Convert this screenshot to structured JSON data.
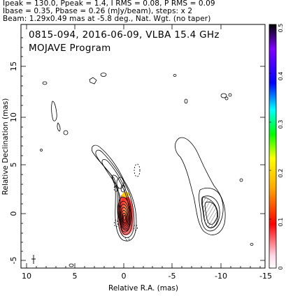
{
  "header": {
    "line1": "Ipeak = 130.0, Ppeak = 1.4, I RMS = 0.08, P RMS = 0.09",
    "line2": "Ibase = 0.35, Pbase = 0.26 (mJy/beam), steps: x 2",
    "line3": "Beam: 1.29x0.49 mas at -5.8 deg., Nat. Wgt. (no taper)"
  },
  "annotation": {
    "source_line": "0815-094, 2016-06-09, VLBA 15.4 GHz",
    "program": "MOJAVE Program"
  },
  "axes": {
    "xlabel": "Relative R.A. (mas)",
    "ylabel": "Relative Declination (mas)",
    "x_ticks": [
      "10",
      "5",
      "0",
      "-5",
      "-10",
      "-15"
    ],
    "y_ticks": [
      "15",
      "10",
      "5",
      "0",
      "-5"
    ]
  },
  "colorbar": {
    "ticks": [
      "0",
      "0.1",
      "0.2",
      "0.3",
      "0.4",
      "0.5"
    ],
    "colors": [
      "#ffffff",
      "#ff0000",
      "#ffff00",
      "#00ff00",
      "#00ffff",
      "#0000ff",
      "#8000ff",
      "#000000"
    ]
  },
  "chart_data": {
    "type": "contour",
    "xlim": [
      10.5,
      -15
    ],
    "ylim": [
      -6,
      19.5
    ],
    "xlabel": "Relative R.A. (mas)",
    "ylabel": "Relative Declination (mas)",
    "colorbar_range": [
      0,
      0.5
    ],
    "features": [
      {
        "name": "core",
        "x": 0.2,
        "y": 0.5,
        "note": "bright core with nested contours and polarization color"
      },
      {
        "name": "inner jet",
        "x": 2.5,
        "y": 4.5,
        "note": "extension toward NE"
      },
      {
        "name": "western component",
        "x": -9,
        "y": 1,
        "note": "diffuse emission with hatched polarization"
      }
    ]
  }
}
